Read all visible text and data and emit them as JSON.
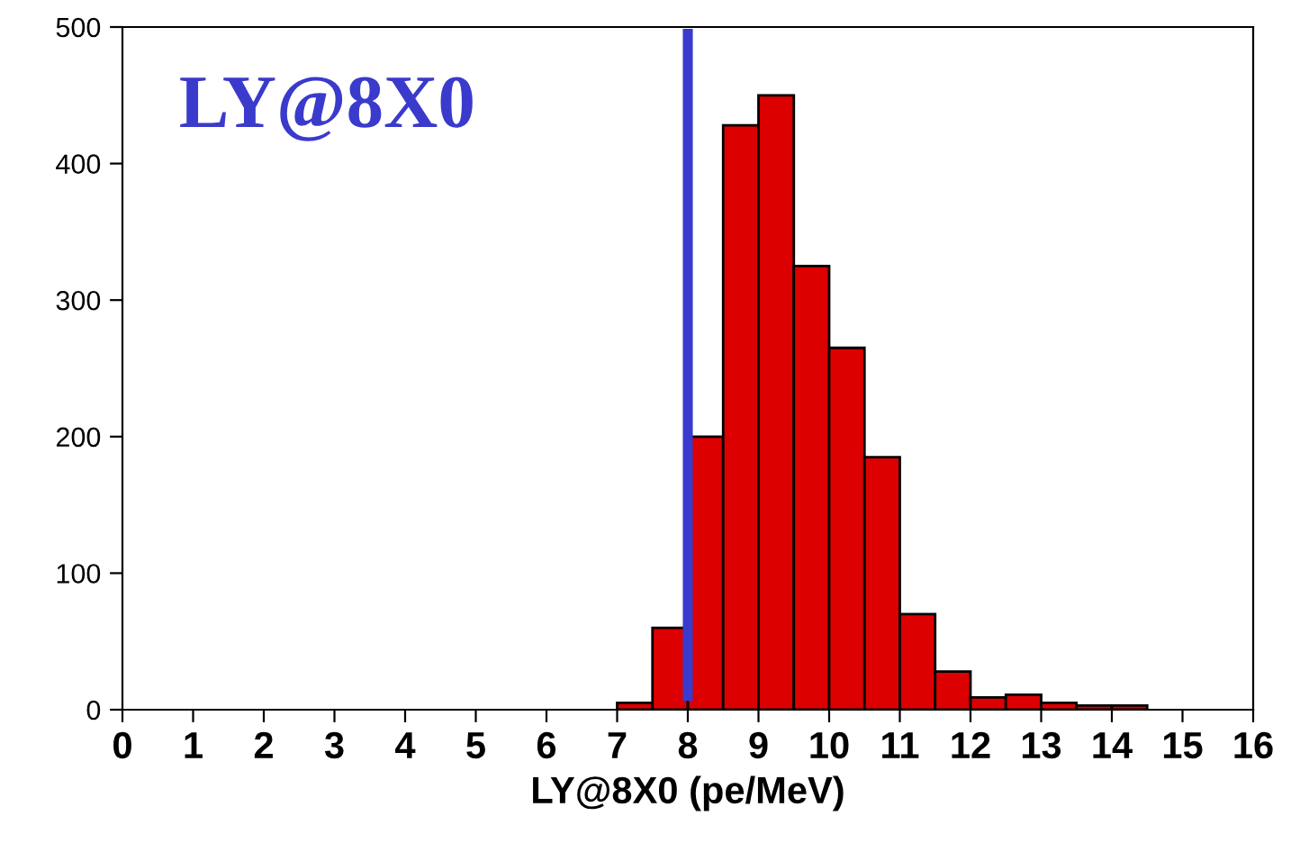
{
  "chart_data": {
    "type": "histogram",
    "xlabel": "LY@8X0 (pe/MeV)",
    "annotations": [
      "LY@8X0"
    ],
    "bins": [
      7,
      7.5,
      8,
      8.5,
      9,
      9.5,
      10,
      10.5,
      11,
      11.5,
      12,
      12.5,
      13,
      13.5,
      14,
      14.5
    ],
    "values": [
      5,
      60,
      200,
      428,
      450,
      325,
      265,
      185,
      70,
      28,
      9,
      11,
      5,
      3,
      3
    ],
    "color": "#dd0000",
    "xlim": [
      0,
      16
    ],
    "xticks": [
      0,
      1,
      2,
      3,
      4,
      5,
      6,
      7,
      8,
      9,
      10,
      11,
      12,
      13,
      14,
      15,
      16
    ],
    "ylim": [
      0,
      500
    ],
    "yticks": [
      0,
      100,
      200,
      300,
      400,
      500
    ],
    "ref_lines": [
      {
        "axis": "x",
        "value": 8,
        "color": "#3a3acc"
      }
    ],
    "grid": false
  }
}
